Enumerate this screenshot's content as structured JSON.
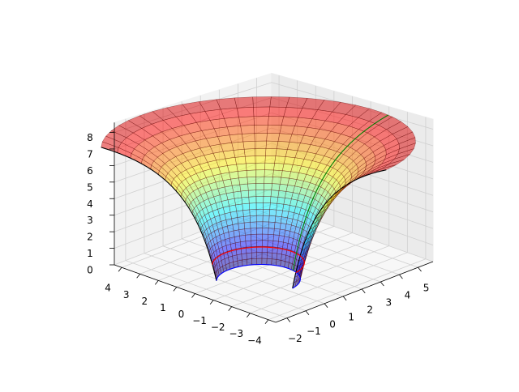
{
  "chart_data": {
    "type": "surface3d",
    "xlim": [
      -2.6,
      5.8
    ],
    "ylim": [
      -4.4,
      4.4
    ],
    "zlim": [
      0,
      8.6
    ],
    "xticks": [
      {
        "value": -2,
        "label": "−2"
      },
      {
        "value": -1,
        "label": "−1"
      },
      0,
      1,
      2,
      3,
      4,
      5
    ],
    "yticks": [
      {
        "value": -4,
        "label": "−4"
      },
      {
        "value": -3,
        "label": "−3"
      },
      {
        "value": -2,
        "label": "−2"
      },
      {
        "value": -1,
        "label": "−1"
      },
      0,
      1,
      2,
      3,
      4
    ],
    "zticks": [
      0,
      1,
      2,
      3,
      4,
      5,
      6,
      7,
      8
    ],
    "grid": true
  }
}
